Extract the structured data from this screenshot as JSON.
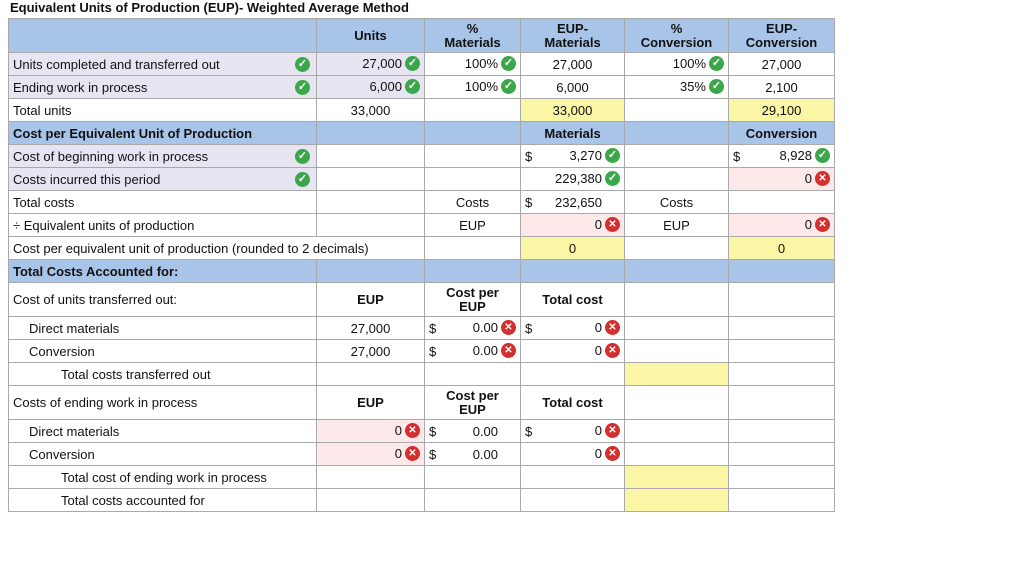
{
  "title": "Equivalent Units of Production (EUP)- Weighted Average Method",
  "headers": {
    "units": "Units",
    "pct_mat_1": "%",
    "pct_mat_2": "Materials",
    "eup_mat_1": "EUP-",
    "eup_mat_2": "Materials",
    "pct_conv_1": "%",
    "pct_conv_2": "Conversion",
    "eup_conv_1": "EUP-",
    "eup_conv_2": "Conversion"
  },
  "rows": {
    "completed": {
      "label": "Units completed and transferred out",
      "units": "27,000",
      "pct_mat": "100%",
      "eup_mat": "27,000",
      "pct_conv": "100%",
      "eup_conv": "27,000"
    },
    "ending": {
      "label": "Ending work in process",
      "units": "6,000",
      "pct_mat": "100%",
      "eup_mat": "6,000",
      "pct_conv": "35%",
      "eup_conv": "2,100"
    },
    "total_units": {
      "label": "Total units",
      "units": "33,000",
      "eup_mat": "33,000",
      "eup_conv": "29,100"
    },
    "cpe_header": {
      "label": "Cost per Equivalent Unit of Production",
      "mat": "Materials",
      "conv": "Conversion"
    },
    "beginning": {
      "label": "Cost of beginning work in process",
      "mat": "3,270",
      "conv": "8,928"
    },
    "incurred": {
      "label": "Costs incurred this period",
      "mat": "229,380",
      "conv": "0"
    },
    "total_costs": {
      "label": "Total costs",
      "mat_word": "Costs",
      "mat": "232,650",
      "conv_word": "Costs"
    },
    "div_eup": {
      "label": "÷ Equivalent units of production",
      "mat_word": "EUP",
      "mat": "0",
      "conv_word": "EUP",
      "conv": "0"
    },
    "cost_per": {
      "label": "Cost per equivalent unit of production (rounded to 2 decimals)",
      "mat": "0",
      "conv": "0"
    },
    "tca_header": {
      "label": "Total Costs Accounted for:"
    },
    "transferred": {
      "label": "Cost of units transferred out:",
      "eup": "EUP",
      "cpe_1": "Cost per",
      "cpe_2": "EUP",
      "total": "Total cost"
    },
    "tr_dm": {
      "label": "Direct materials",
      "eup": "27,000",
      "cpe": "0.00",
      "total": "0"
    },
    "tr_conv": {
      "label": "Conversion",
      "eup": "27,000",
      "cpe": "0.00",
      "total": "0"
    },
    "tr_total": {
      "label": "Total costs transferred out"
    },
    "ending_costs": {
      "label": "Costs of ending work in process",
      "eup": "EUP",
      "cpe_1": "Cost per",
      "cpe_2": "EUP",
      "total": "Total cost"
    },
    "end_dm": {
      "label": "Direct materials",
      "eup": "0",
      "cpe": "0.00",
      "total": "0"
    },
    "end_conv": {
      "label": "Conversion",
      "eup": "0",
      "cpe": "0.00",
      "total": "0"
    },
    "end_total": {
      "label": "Total cost of ending work in process"
    },
    "accounted": {
      "label": "Total costs accounted for"
    }
  },
  "symbols": {
    "dollar": "$",
    "check": "✓",
    "cross": "✕"
  },
  "colors": {
    "header_blue": "#a8c4e8",
    "input_yellow": "#fbf5a6",
    "input_lavender": "#e7e5f2",
    "error_pink": "#fde8ea",
    "check_green": "#3aa84a",
    "error_red": "#d42e2e"
  },
  "icons": {
    "correct": "check-circle-icon",
    "incorrect": "x-circle-icon"
  }
}
